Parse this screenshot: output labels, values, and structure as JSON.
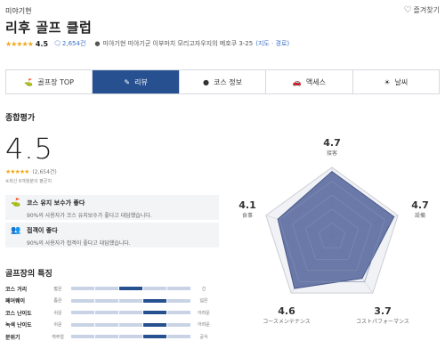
{
  "header": {
    "region": "미야기현",
    "favorite_label": "즐겨찾기",
    "course_name": "리후 골프 클럽",
    "rating_stars": "★★★★★",
    "rating_value": "4.5",
    "review_count": "2,654건",
    "address": "미야기현 미야기군 이부마치 모리고자우지의 메호쿠 3-25",
    "map_link": "(지도 · 경로)"
  },
  "tabs": [
    {
      "label": "골프장 TOP",
      "icon": "golfer-icon"
    },
    {
      "label": "리뷰",
      "icon": "review-icon"
    },
    {
      "label": "코스 정보",
      "icon": "course-icon"
    },
    {
      "label": "액세스",
      "icon": "car-icon"
    },
    {
      "label": "날씨",
      "icon": "weather-icon"
    }
  ],
  "summary": {
    "section_title": "종합평가",
    "score": "4.5",
    "stars": "★★★★★",
    "count": "(2,654건)",
    "note": "※최신 6개월분의 평균치"
  },
  "highlights": [
    {
      "title": "코스 유지 보수가 좋다",
      "desc": "90%의 사용자가 코스 유지보수가 좋다고 대답했습니다.",
      "icon": "flag-icon"
    },
    {
      "title": "접객이 좋다",
      "desc": "90%의 사용자가 접객이 좋다고 대답했습니다.",
      "icon": "people-icon"
    }
  ],
  "features": {
    "section_title": "골프장의 특징",
    "rows": [
      {
        "label": "코스 거리",
        "left": "짧은",
        "right": "긴",
        "level": 3
      },
      {
        "label": "페어웨이",
        "left": "좁은",
        "right": "넓은",
        "level": 4
      },
      {
        "label": "코스 난이도",
        "left": "쉬운",
        "right": "어려운",
        "level": 4
      },
      {
        "label": "녹색 난이도",
        "left": "쉬운",
        "right": "어려운",
        "level": 4
      },
      {
        "label": "분위기",
        "left": "캐주얼",
        "right": "공식",
        "level": 4
      }
    ]
  },
  "radar": {
    "axes": [
      {
        "label": "接客",
        "value": "4.7",
        "v": 4.7
      },
      {
        "label": "設備",
        "value": "4.7",
        "v": 4.7
      },
      {
        "label": "コストパフォーマンス",
        "value": "3.7",
        "v": 3.7
      },
      {
        "label": "コースメンテナンス",
        "value": "4.6",
        "v": 4.6
      },
      {
        "label": "食事",
        "value": "4.1",
        "v": 4.1
      }
    ],
    "fill_color": "#5b6b9e"
  }
}
